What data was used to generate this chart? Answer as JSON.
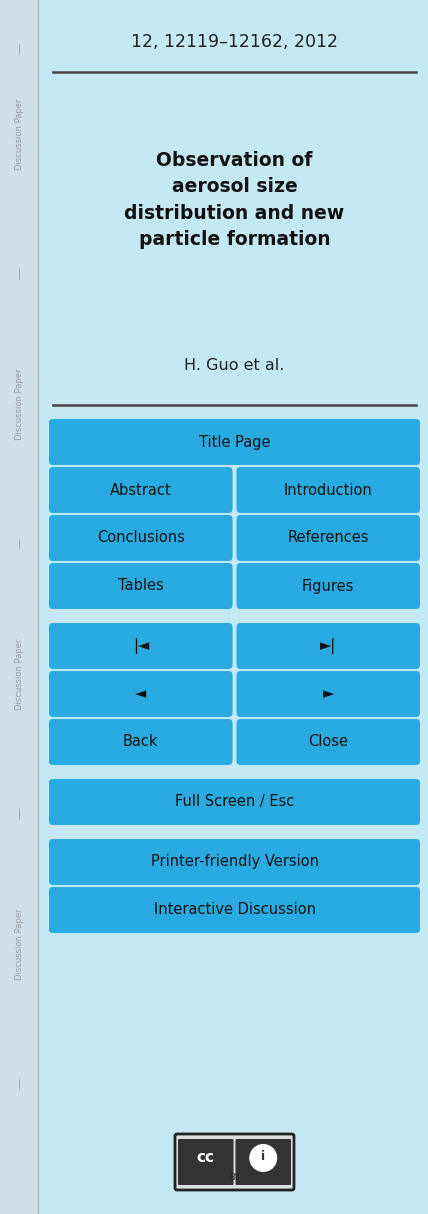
{
  "bg_color": "#c5e8f5",
  "sidebar_color": "#d0dfe8",
  "content_bg": "#c5e8f5",
  "header_text": "12, 12119–12162, 2012",
  "header_fontsize": 12.5,
  "title_text": "Observation of\naerosol size\ndistribution and new\nparticle formation",
  "title_fontsize": 13.5,
  "author_text": "H. Guo et al.",
  "author_fontsize": 11.5,
  "button_color": "#29abe2",
  "button_text_color": "#111111",
  "button_fontsize": 10.5,
  "divider_color": "#444444",
  "sidebar_text_color": "#999999",
  "sidebar_fontsize": 6.0
}
